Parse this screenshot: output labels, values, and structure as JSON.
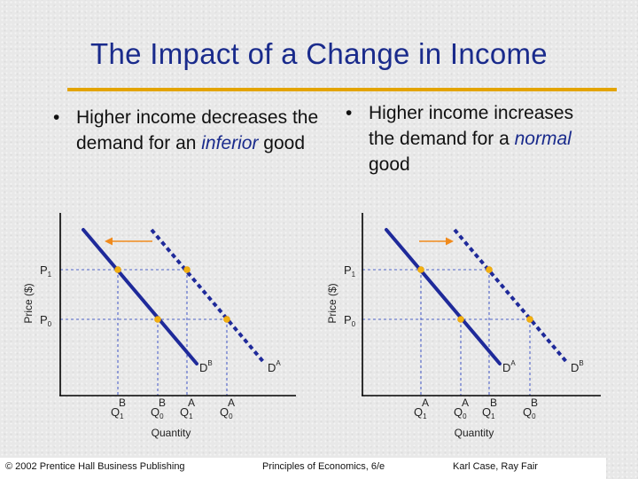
{
  "title": "The Impact of a Change in Income",
  "left_bullet": {
    "bullet": "•",
    "pre": "Higher income decreases the demand for an ",
    "emph": "inferior",
    "post": " good"
  },
  "right_bullet": {
    "bullet": "•",
    "pre": "Higher income increases the demand for a ",
    "emph": "normal",
    "post": " good"
  },
  "left_chart": {
    "ylabel": "Price ($)",
    "xlabel": "Quantity",
    "p1": "P",
    "p1_sub": "1",
    "p0": "P",
    "p0_sub": "0",
    "solid_curve_label": "D",
    "solid_curve_sup": "B",
    "dashed_curve_label": "D",
    "dashed_curve_sup": "A",
    "q_labels": [
      {
        "base": "Q",
        "sub": "1",
        "sup": "B"
      },
      {
        "base": "Q",
        "sub": "0",
        "sup": "B"
      },
      {
        "base": "Q",
        "sub": "1",
        "sup": "A"
      },
      {
        "base": "Q",
        "sub": "0",
        "sup": "A"
      }
    ]
  },
  "right_chart": {
    "ylabel": "Price ($)",
    "xlabel": "Quantity",
    "p1": "P",
    "p1_sub": "1",
    "p0": "P",
    "p0_sub": "0",
    "solid_curve_label": "D",
    "solid_curve_sup": "A",
    "dashed_curve_label": "D",
    "dashed_curve_sup": "B",
    "q_labels": [
      {
        "base": "Q",
        "sub": "1",
        "sup": "A"
      },
      {
        "base": "Q",
        "sub": "0",
        "sup": "A"
      },
      {
        "base": "Q",
        "sub": "1",
        "sup": "B"
      },
      {
        "base": "Q",
        "sub": "0",
        "sup": "B"
      }
    ]
  },
  "footer": {
    "left": "© 2002 Prentice Hall Business Publishing",
    "center": "Principles of Economics, 6/e",
    "right": "Karl Case, Ray Fair"
  },
  "colors": {
    "title": "#1a2b8c",
    "rule": "#e3a400",
    "curve": "#1f2a9a",
    "point": "#f2b111",
    "arrow": "#f08a1c",
    "guide": "#4f63c9"
  }
}
